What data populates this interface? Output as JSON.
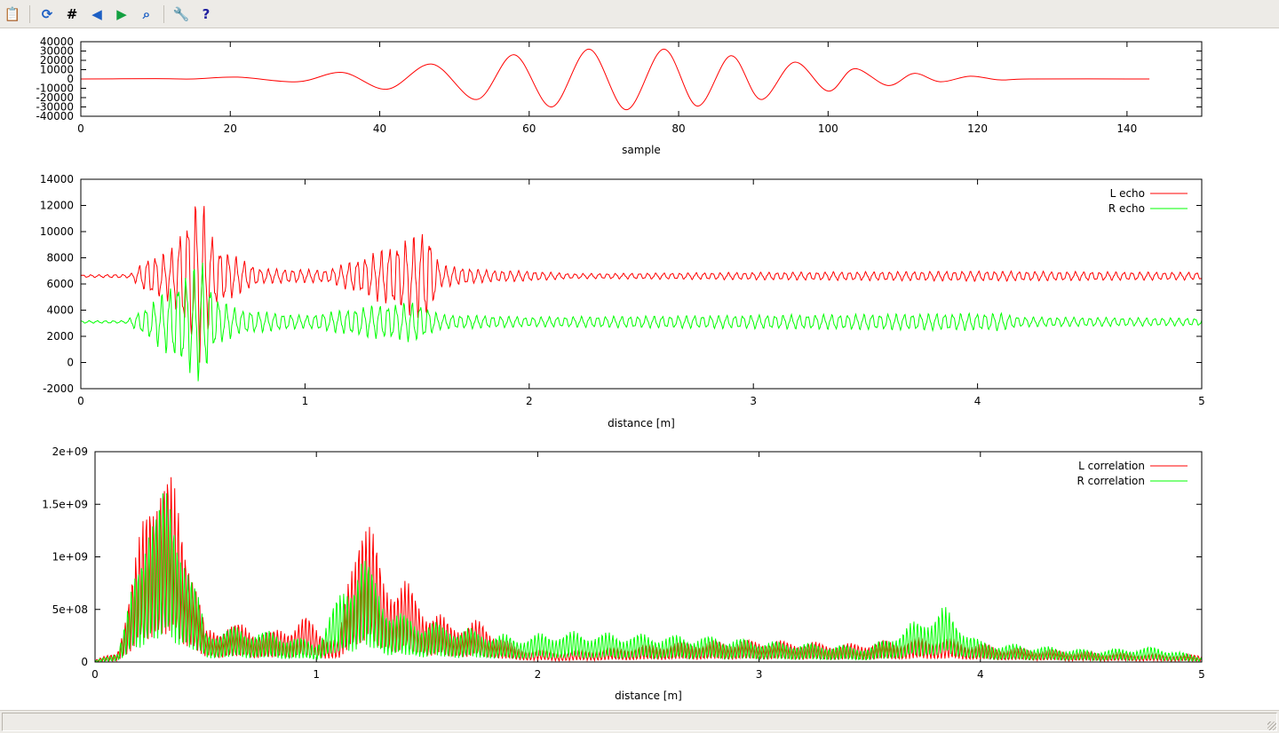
{
  "toolbar": {
    "buttons": [
      {
        "name": "copy-to-clipboard",
        "glyph": "📋"
      },
      {
        "name": "replot",
        "glyph": "⟳"
      },
      {
        "name": "toggle-grid",
        "glyph": "#"
      },
      {
        "name": "previous-zoom",
        "glyph": "◀"
      },
      {
        "name": "next-zoom",
        "glyph": "▶"
      },
      {
        "name": "autoscale",
        "glyph": "⌕"
      },
      {
        "name": "options",
        "glyph": "🔧"
      },
      {
        "name": "help",
        "glyph": "?"
      }
    ]
  },
  "colors": {
    "L": "#ff0000",
    "R": "#00ff00",
    "axis": "#000000"
  },
  "chart_data": [
    {
      "type": "line",
      "xlabel": "sample",
      "ylabel": "",
      "xlim": [
        0,
        150
      ],
      "ylim": [
        -40000,
        40000
      ],
      "xticks": [
        0,
        20,
        40,
        60,
        80,
        100,
        120,
        140
      ],
      "yticks": [
        40000,
        30000,
        20000,
        10000,
        0,
        -10000,
        -20000,
        -30000,
        -40000
      ],
      "series": [
        {
          "color": "#ff0000",
          "points": [
            [
              0,
              0
            ],
            [
              10,
              300
            ],
            [
              15,
              0
            ],
            [
              21,
              2000
            ],
            [
              29,
              -3000
            ],
            [
              35,
              7000
            ],
            [
              41,
              -11000
            ],
            [
              47,
              16000
            ],
            [
              53,
              -22000
            ],
            [
              58,
              26000
            ],
            [
              63,
              -30000
            ],
            [
              68,
              32000
            ],
            [
              73,
              -33000
            ],
            [
              78,
              32000
            ],
            [
              82.5,
              -29000
            ],
            [
              87,
              25000
            ],
            [
              91,
              -22000
            ],
            [
              95.5,
              18000
            ],
            [
              100,
              -13000
            ],
            [
              103.5,
              11000
            ],
            [
              108,
              -7000
            ],
            [
              111.5,
              6000
            ],
            [
              115,
              -3000
            ],
            [
              119,
              3000
            ],
            [
              123,
              -1000
            ],
            [
              127,
              0
            ],
            [
              143,
              0
            ]
          ]
        }
      ]
    },
    {
      "type": "line",
      "xlabel": "distance [m]",
      "ylabel": "",
      "xlim": [
        0,
        5
      ],
      "ylim": [
        -2000,
        14000
      ],
      "xticks": [
        0,
        1,
        2,
        3,
        4,
        5
      ],
      "yticks": [
        14000,
        12000,
        10000,
        8000,
        6000,
        4000,
        2000,
        0,
        -2000
      ],
      "legend": "top-right",
      "series": [
        {
          "name": "L echo",
          "color": "#ff0000",
          "baseline": 6600,
          "envelope": [
            [
              0,
              100
            ],
            [
              0.22,
              150
            ],
            [
              0.3,
              1500
            ],
            [
              0.4,
              2000
            ],
            [
              0.53,
              6700
            ],
            [
              0.6,
              2500
            ],
            [
              0.7,
              1500
            ],
            [
              0.8,
              600
            ],
            [
              1.1,
              500
            ],
            [
              1.3,
              1800
            ],
            [
              1.55,
              3700
            ],
            [
              1.6,
              900
            ],
            [
              1.8,
              500
            ],
            [
              2,
              400
            ],
            [
              2.2,
              200
            ],
            [
              3,
              300
            ],
            [
              4,
              400
            ],
            [
              5,
              300
            ]
          ]
        },
        {
          "name": "R echo",
          "color": "#00ff00",
          "baseline": 3100,
          "envelope": [
            [
              0,
              100
            ],
            [
              0.2,
              100
            ],
            [
              0.3,
              1300
            ],
            [
              0.54,
              4900
            ],
            [
              0.6,
              2000
            ],
            [
              0.7,
              1000
            ],
            [
              1,
              500
            ],
            [
              1.3,
              1300
            ],
            [
              1.5,
              1600
            ],
            [
              1.6,
              600
            ],
            [
              2,
              400
            ],
            [
              4.1,
              700
            ],
            [
              4.2,
              400
            ],
            [
              5,
              300
            ]
          ]
        }
      ]
    },
    {
      "type": "line",
      "xlabel": "distance [m]",
      "ylabel": "",
      "xlim": [
        0,
        5
      ],
      "ylim": [
        0,
        2000000000
      ],
      "xticks": [
        0,
        1,
        2,
        3,
        4,
        5
      ],
      "yticks": [
        2000000000,
        1500000000,
        1000000000,
        500000000,
        0
      ],
      "ytick_labels": [
        "2e+09",
        "1.5e+09",
        "1e+09",
        "5e+08",
        "0"
      ],
      "legend": "top-right",
      "series": [
        {
          "name": "L correlation",
          "color": "#ff0000",
          "envelope": [
            [
              0,
              20000000.0
            ],
            [
              0.1,
              100000000.0
            ],
            [
              0.2,
              1200000000.0
            ],
            [
              0.25,
              2000000000.0
            ],
            [
              0.3,
              2000000000.0
            ],
            [
              0.4,
              1500000000.0
            ],
            [
              0.5,
              300000000.0
            ],
            [
              0.6,
              400000000.0
            ],
            [
              0.8,
              300000000.0
            ],
            [
              0.95,
              450000000.0
            ],
            [
              1.1,
              200000000.0
            ],
            [
              1.2,
              1700000000.0
            ],
            [
              1.3,
              900000000.0
            ],
            [
              1.4,
              800000000.0
            ],
            [
              1.5,
              550000000.0
            ],
            [
              1.6,
              400000000.0
            ],
            [
              1.75,
              400000000.0
            ],
            [
              1.9,
              150000000.0
            ],
            [
              2.1,
              100000000.0
            ],
            [
              2.65,
              200000000.0
            ],
            [
              3.0,
              220000000.0
            ],
            [
              3.4,
              180000000.0
            ],
            [
              3.8,
              250000000.0
            ],
            [
              4.1,
              150000000.0
            ],
            [
              4.5,
              100000000.0
            ],
            [
              5,
              70000000.0
            ]
          ]
        },
        {
          "name": "R correlation",
          "color": "#00ff00",
          "envelope": [
            [
              0,
              10000000.0
            ],
            [
              0.1,
              100000000.0
            ],
            [
              0.2,
              1000000000.0
            ],
            [
              0.25,
              1800000000.0
            ],
            [
              0.3,
              1700000000.0
            ],
            [
              0.4,
              1300000000.0
            ],
            [
              0.5,
              300000000.0
            ],
            [
              0.6,
              350000000.0
            ],
            [
              0.8,
              300000000.0
            ],
            [
              1.0,
              200000000.0
            ],
            [
              1.2,
              1100000000.0
            ],
            [
              1.35,
              500000000.0
            ],
            [
              1.5,
              400000000.0
            ],
            [
              1.9,
              250000000.0
            ],
            [
              2.1,
              300000000.0
            ],
            [
              2.8,
              250000000.0
            ],
            [
              3.1,
              200000000.0
            ],
            [
              3.5,
              150000000.0
            ],
            [
              3.83,
              550000000.0
            ],
            [
              4.0,
              200000000.0
            ],
            [
              4.5,
              120000000.0
            ],
            [
              4.8,
              150000000.0
            ],
            [
              5,
              50000000.0
            ]
          ]
        }
      ]
    }
  ]
}
